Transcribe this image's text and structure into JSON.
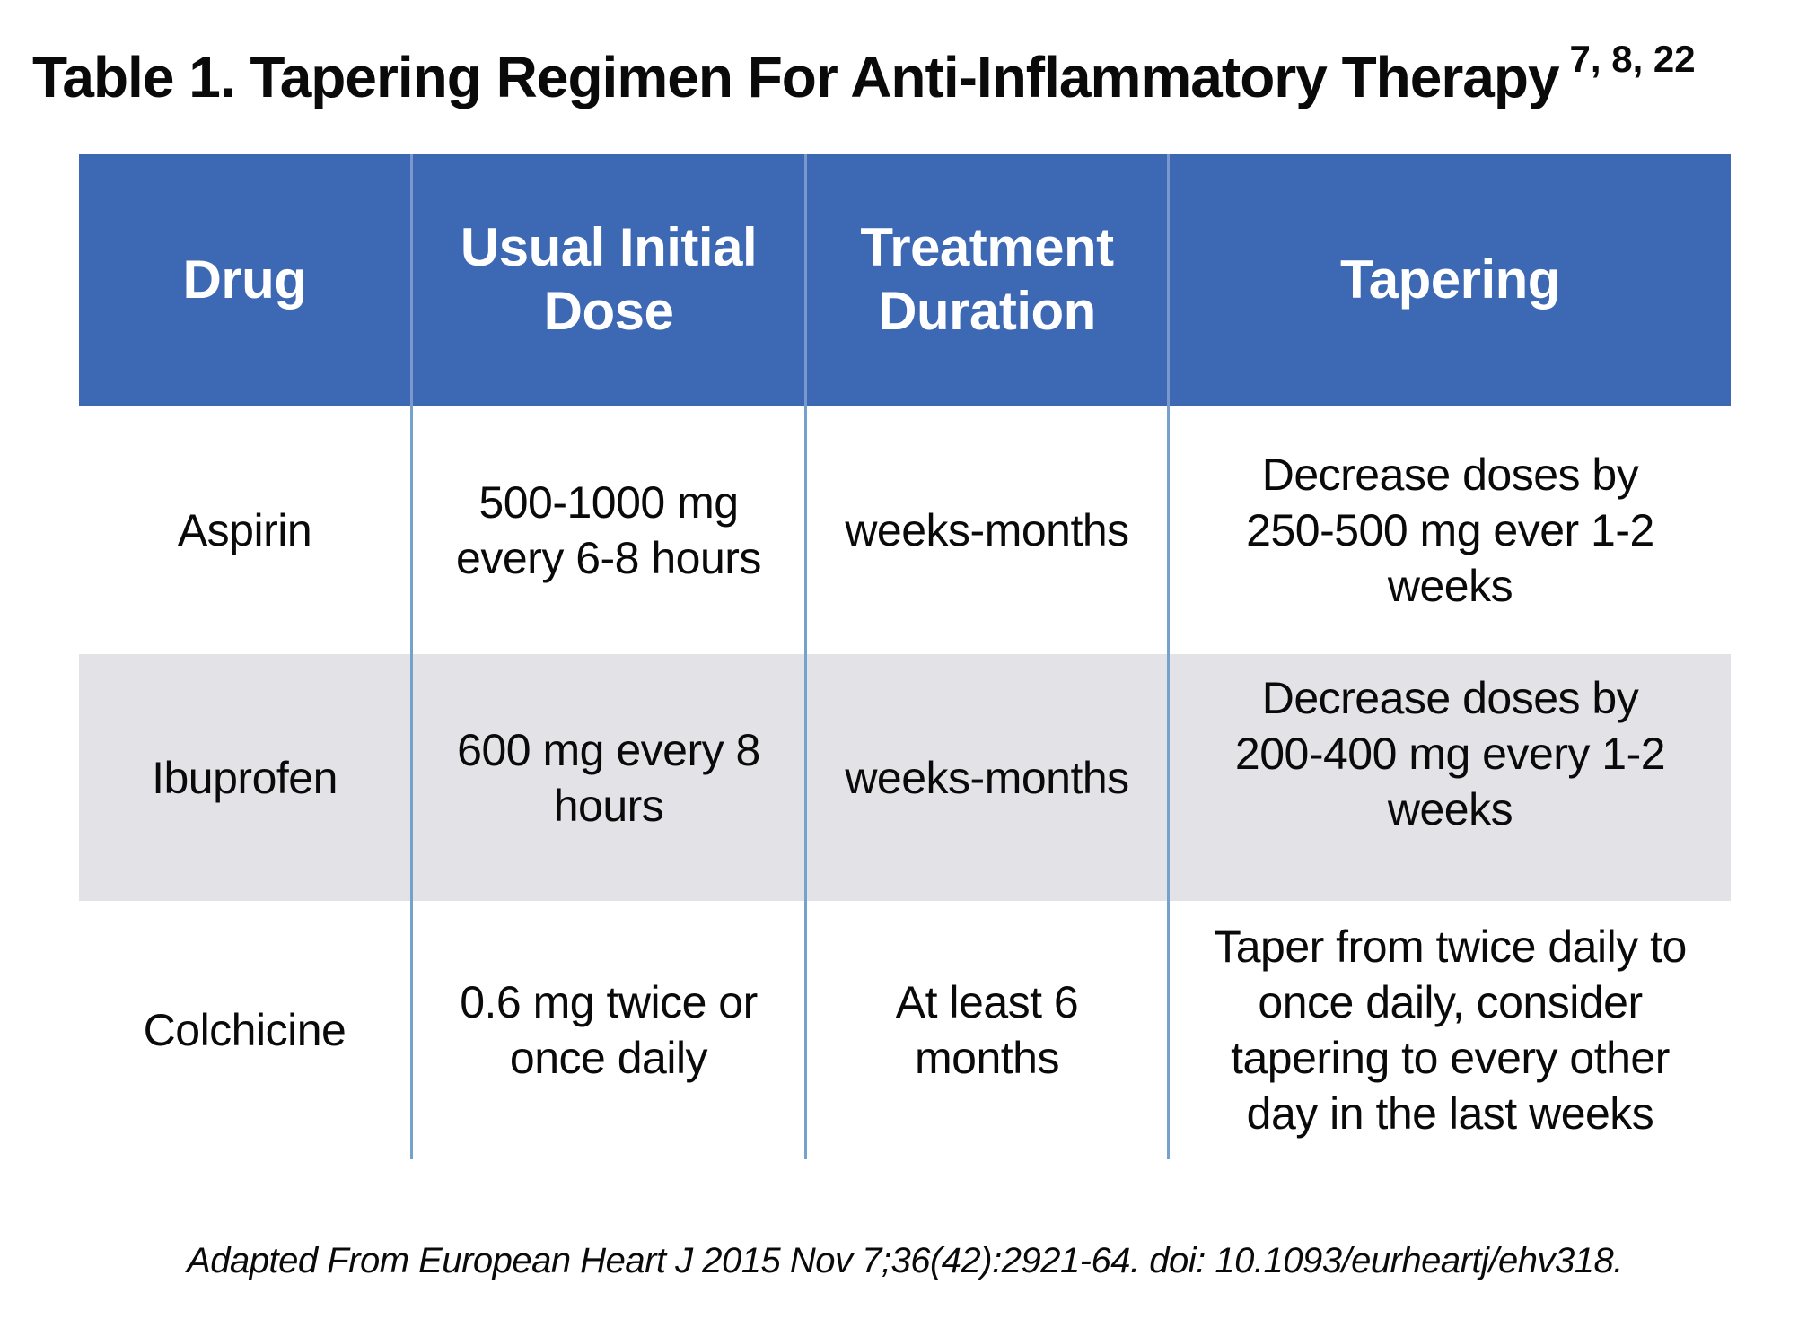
{
  "title": {
    "text": "Table 1. Tapering Regimen For Anti-Inflammatory Therapy",
    "superscript": "7, 8, 22"
  },
  "table": {
    "columns": [
      [
        "Drug"
      ],
      [
        "Usual Initial",
        "Dose"
      ],
      [
        "Treatment",
        "Duration"
      ],
      [
        "Tapering"
      ]
    ],
    "rows": [
      {
        "drug": [
          "Aspirin"
        ],
        "initial_dose": [
          "500-1000 mg",
          "every 6-8 hours"
        ],
        "duration": [
          "weeks-months"
        ],
        "tapering": [
          "Decrease doses by",
          "250-500 mg ever 1-2",
          "weeks"
        ]
      },
      {
        "drug": [
          "Ibuprofen"
        ],
        "initial_dose": [
          "600 mg every 8",
          "hours"
        ],
        "duration": [
          "weeks-months"
        ],
        "tapering": [
          "Decrease doses by",
          "200-400 mg every 1-2",
          "weeks"
        ]
      },
      {
        "drug": [
          "Colchicine"
        ],
        "initial_dose": [
          "0.6 mg twice or",
          "once daily"
        ],
        "duration": [
          "At least 6",
          "months"
        ],
        "tapering": [
          "Taper from twice daily to",
          "once daily, consider",
          "tapering to every other",
          "day in the last weeks"
        ]
      }
    ]
  },
  "colors": {
    "header_bg": "#3C68B4",
    "header_text": "#FFFFFF",
    "row_bg": "#FFFFFF",
    "row_alt_bg": "#E2E2E7",
    "divider": "#74A2CC"
  },
  "footer": {
    "text": "Adapted From European Heart J 2015 Nov 7;36(42):2921-64. doi: 10.1093/eurheartj/ehv318."
  }
}
